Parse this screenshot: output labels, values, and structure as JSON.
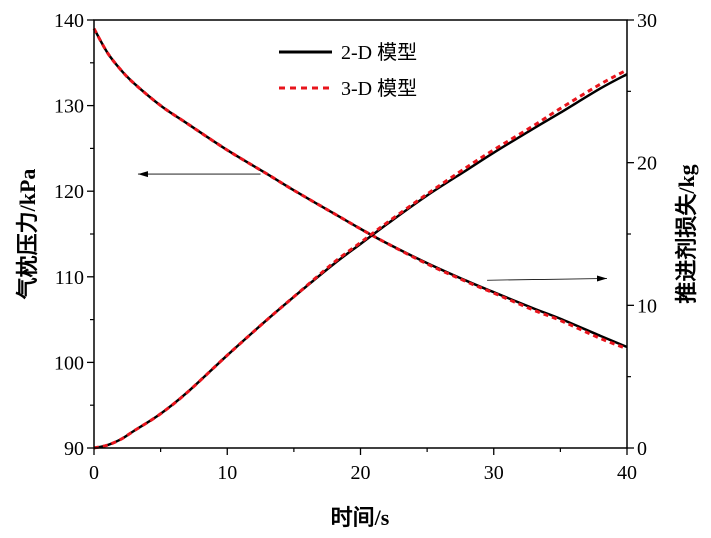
{
  "chart_data": {
    "type": "line",
    "xlabel": "时间/s",
    "ylabel_left": "气枕压力/kPa",
    "ylabel_right": "推进剂损失/kg",
    "xlim": [
      0,
      40
    ],
    "ylim_left": [
      90,
      140
    ],
    "ylim_right": [
      0,
      30
    ],
    "xticks": [
      "0",
      "10",
      "20",
      "30",
      "40"
    ],
    "yticks_left": [
      "90",
      "100",
      "110",
      "120",
      "130",
      "140"
    ],
    "yticks_right": [
      "0",
      "10",
      "20",
      "30"
    ],
    "legend": {
      "placement": "top-center",
      "entries": [
        "2-D 模型",
        "3-D 模型"
      ]
    },
    "colors": {
      "2d": "#000000",
      "3d": "#e8141c"
    },
    "x": [
      0,
      1,
      2,
      3,
      5,
      7,
      10,
      13,
      15,
      18,
      20,
      22,
      25,
      28,
      30,
      33,
      35,
      38,
      40
    ],
    "series": [
      {
        "name": "2-D 模型 pressure",
        "axis": "left",
        "style": "solid",
        "values": [
          139,
          136.2,
          134.2,
          132.6,
          130,
          127.9,
          124.8,
          122,
          120.1,
          117.4,
          115.6,
          113.9,
          111.6,
          109.5,
          108.2,
          106.3,
          105.1,
          103.1,
          101.8
        ]
      },
      {
        "name": "3-D 模型 pressure",
        "axis": "left",
        "style": "dotted",
        "values": [
          139,
          136.2,
          134.2,
          132.6,
          130,
          127.9,
          124.8,
          122,
          120.1,
          117.4,
          115.6,
          113.9,
          111.5,
          109.4,
          108.1,
          106.1,
          104.9,
          102.8,
          101.6
        ]
      },
      {
        "name": "2-D 模型 propellant loss",
        "axis": "right",
        "style": "solid",
        "values": [
          0,
          0.2,
          0.6,
          1.2,
          2.4,
          3.9,
          6.5,
          9.0,
          10.6,
          12.9,
          14.3,
          15.7,
          17.7,
          19.5,
          20.7,
          22.4,
          23.5,
          25.2,
          26.2
        ]
      },
      {
        "name": "3-D 模型 propellant loss",
        "axis": "right",
        "style": "dotted",
        "values": [
          0,
          0.2,
          0.6,
          1.2,
          2.4,
          3.9,
          6.5,
          9.0,
          10.6,
          13.0,
          14.4,
          15.8,
          17.8,
          19.7,
          20.9,
          22.6,
          23.8,
          25.5,
          26.5
        ]
      }
    ],
    "annotations": [
      {
        "type": "arrow",
        "from": [
          12.5,
          122
        ],
        "to": [
          3.3,
          122
        ],
        "axis": "left",
        "meaning": "pressure curves use left axis"
      },
      {
        "type": "arrow",
        "from": [
          29.5,
          109.6
        ],
        "to": [
          38.5,
          109.8
        ],
        "axis": "left",
        "meaning": "loss curves use right axis"
      }
    ]
  }
}
